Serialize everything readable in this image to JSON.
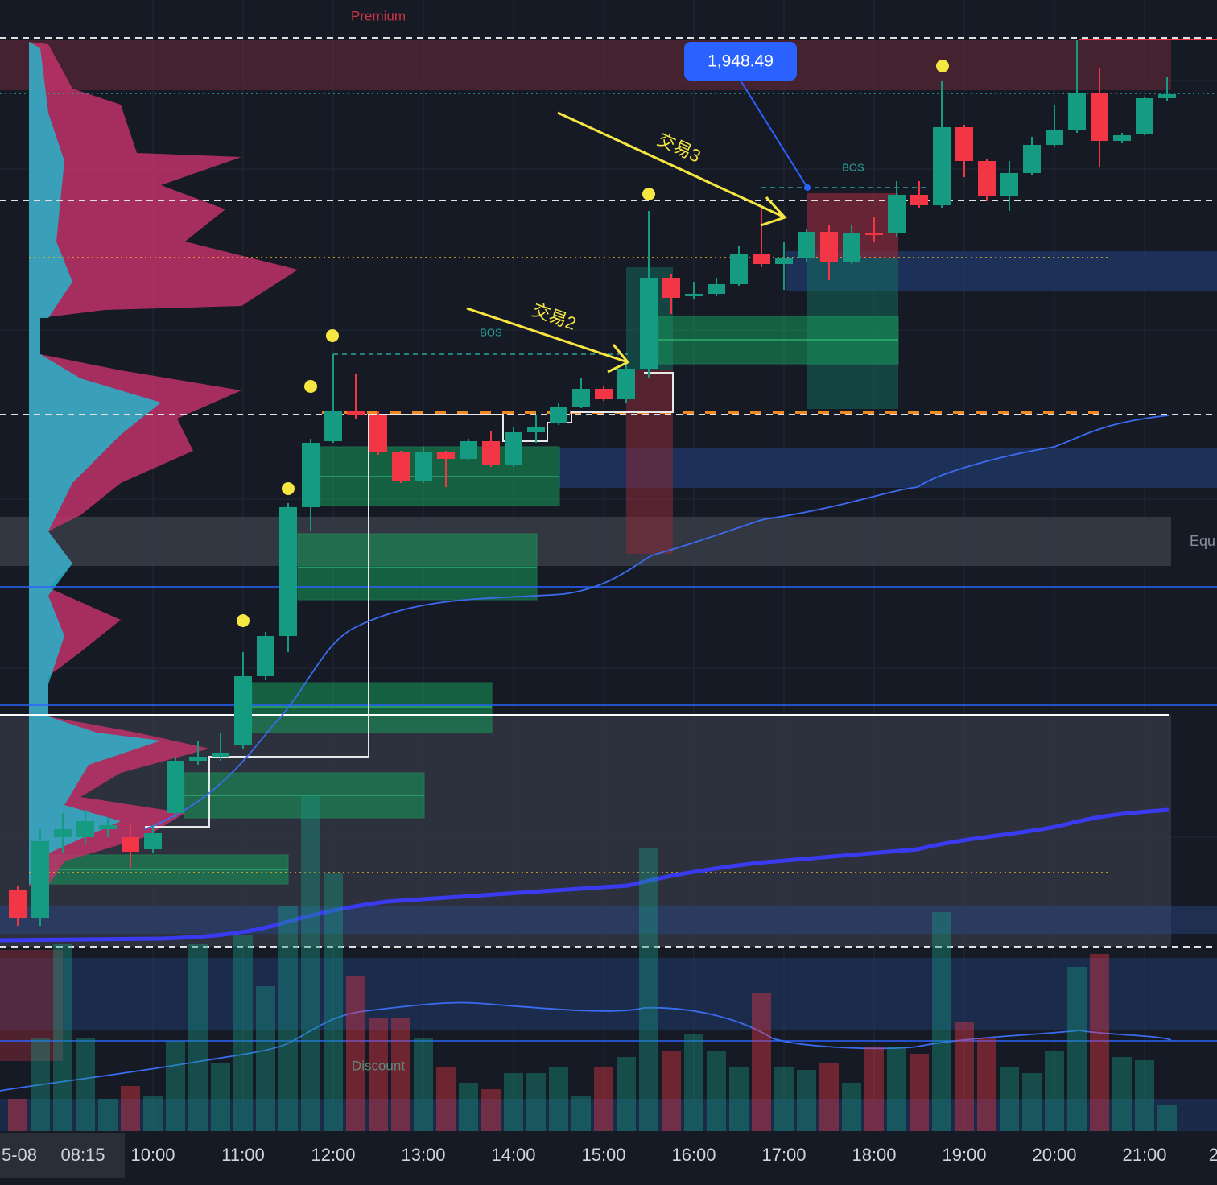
{
  "chart_data": {
    "type": "candlestick",
    "categories": [
      null,
      null,
      null,
      null,
      null,
      null,
      "10:00",
      null,
      null,
      null,
      "11:00",
      null,
      null,
      null,
      "12:00",
      null,
      null,
      null,
      "13:00",
      null,
      null,
      null,
      "14:00",
      null,
      null,
      null,
      "15:00",
      null,
      null,
      null,
      "16:00",
      null,
      null,
      null,
      "17:00",
      null,
      null,
      null,
      "18:00",
      null,
      null,
      null,
      "19:00",
      null,
      null,
      null,
      "20:00",
      null,
      null,
      null,
      "21:00",
      null
    ],
    "x_label_clipped": "2",
    "time_badge": {
      "date": "5-08",
      "time": "08:15"
    },
    "open": [
      1931.05,
      1930.35,
      1932.35,
      1932.35,
      1932.55,
      1932.35,
      1932.05,
      1932.95,
      1934.25,
      1934.35,
      1934.65,
      1936.35,
      1937.35,
      1940.55,
      1942.19,
      1942.95,
      1942.85,
      1941.91,
      1941.21,
      1941.91,
      1941.75,
      1942.19,
      1941.61,
      1942.41,
      1942.65,
      1943.05,
      1943.49,
      1943.23,
      1943.99,
      1946.25,
      1945.79,
      1945.85,
      1946.09,
      1946.85,
      1946.59,
      1946.75,
      1947.39,
      1946.65,
      1947.35,
      1947.35,
      1948.31,
      1948.05,
      1949.99,
      1949.15,
      1948.29,
      1948.85,
      1949.55,
      1949.91,
      1950.85,
      1949.65,
      1949.81,
      1950.71
    ],
    "high": [
      1931.15,
      1932.55,
      1932.95,
      1933.05,
      1932.85,
      1932.65,
      1932.65,
      1934.35,
      1934.75,
      1934.95,
      1936.95,
      1937.45,
      1940.65,
      1942.25,
      1944.35,
      1943.85,
      1942.95,
      1941.95,
      1942.05,
      1941.95,
      1942.25,
      1942.45,
      1942.55,
      1942.85,
      1943.15,
      1943.75,
      1943.55,
      1944.15,
      1947.91,
      1946.35,
      1946.15,
      1946.25,
      1947.05,
      1947.95,
      1947.15,
      1947.45,
      1947.55,
      1947.55,
      1947.75,
      1948.65,
      1948.65,
      1951.15,
      1950.05,
      1949.19,
      1949.15,
      1949.75,
      1950.55,
      1952.15,
      1951.45,
      1949.85,
      1950.75,
      1951.23
    ],
    "low": [
      1930.15,
      1930.15,
      1931.95,
      1932.15,
      1932.35,
      1931.59,
      1931.95,
      1932.85,
      1934.15,
      1934.25,
      1934.55,
      1936.25,
      1936.95,
      1939.95,
      1942.15,
      1942.75,
      1941.85,
      1941.15,
      1941.15,
      1941.05,
      1941.71,
      1941.55,
      1941.55,
      1942.15,
      1942.59,
      1943.01,
      1943.19,
      1943.15,
      1943.75,
      1945.35,
      1945.71,
      1945.79,
      1946.05,
      1946.51,
      1945.95,
      1946.65,
      1946.19,
      1946.59,
      1947.15,
      1947.25,
      1947.99,
      1947.99,
      1948.75,
      1948.15,
      1947.91,
      1948.79,
      1949.49,
      1949.85,
      1948.99,
      1949.59,
      1949.79,
      1950.65
    ],
    "close": [
      1930.35,
      1932.25,
      1932.55,
      1932.75,
      1932.65,
      1931.99,
      1932.45,
      1934.25,
      1934.35,
      1934.45,
      1936.35,
      1937.35,
      1940.55,
      1942.15,
      1942.95,
      1942.85,
      1941.91,
      1941.21,
      1941.91,
      1941.75,
      1942.19,
      1941.61,
      1942.41,
      1942.55,
      1943.05,
      1943.49,
      1943.23,
      1943.99,
      1946.25,
      1945.75,
      1945.85,
      1946.09,
      1946.85,
      1946.59,
      1946.75,
      1947.39,
      1946.65,
      1947.35,
      1947.31,
      1948.31,
      1948.05,
      1949.99,
      1949.15,
      1948.29,
      1948.85,
      1949.55,
      1949.91,
      1950.85,
      1949.65,
      1949.79,
      1950.71,
      1950.81
    ],
    "volume": [
      10,
      29,
      58,
      29,
      10,
      14,
      11,
      28,
      58,
      21,
      61,
      45,
      70,
      104,
      80,
      48,
      35,
      35,
      29,
      20,
      15,
      13,
      18,
      18,
      20,
      11,
      20,
      23,
      88,
      25,
      30,
      25,
      20,
      43,
      20,
      19,
      21,
      15,
      26,
      26,
      24,
      68,
      34,
      29,
      20,
      18,
      25,
      51,
      55,
      23,
      22,
      8
    ],
    "ylim": [
      1929.55,
      1953.15
    ],
    "volume_lim": [
      0,
      105
    ],
    "up_color": "#169b83",
    "down_color": "#f23645",
    "price_marker": {
      "value": 1948.49,
      "label": "1,948.49"
    },
    "annotations": {
      "premium": "Premium",
      "discount": "Discount",
      "equilibrium": "Equ",
      "bos_1": "BOS",
      "bos_2": "BOS",
      "trade_2": "交易2",
      "trade_3": "交易3"
    }
  }
}
